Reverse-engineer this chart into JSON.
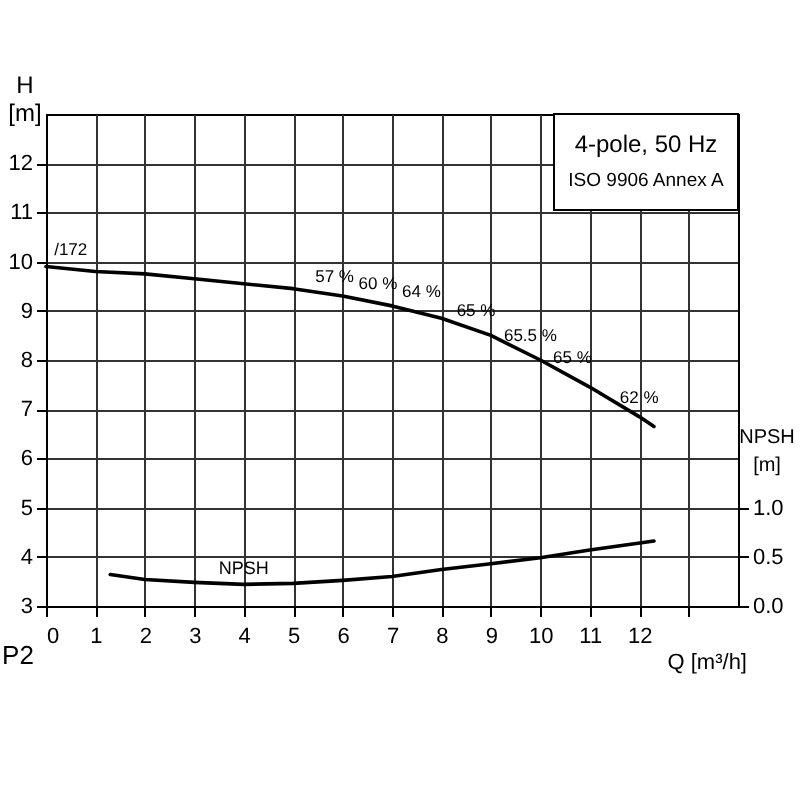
{
  "chart_data": {
    "type": "line",
    "title": "4-pole, 50 Hz",
    "subtitle": "ISO 9906 Annex A",
    "xlabel": "Q [m³/h]",
    "ylabel": "H [m]",
    "y2label": "NPSH [m]",
    "xlim": [
      0,
      14
    ],
    "xticks": [
      0,
      1,
      2,
      3,
      4,
      5,
      6,
      7,
      8,
      9,
      10,
      11,
      12,
      {
        "value": 13,
        "label": null
      }
    ],
    "ylim": [
      3,
      13
    ],
    "yticks": [
      3,
      4,
      5,
      6,
      7,
      8,
      9,
      10,
      11,
      12
    ],
    "y2lim": [
      0,
      5
    ],
    "y2ticks": [
      {
        "value": 0,
        "label": "0.0"
      },
      0.5,
      {
        "value": 1,
        "label": "1.0"
      }
    ],
    "grid": true,
    "series": [
      {
        "color": "#000000",
        "x": [
          0,
          1,
          2,
          3,
          4,
          5,
          6,
          7,
          8,
          9,
          10,
          11,
          12,
          12.3
        ],
        "values": [
          9.9,
          9.8,
          9.75,
          9.65,
          9.55,
          9.45,
          9.3,
          9.1,
          8.85,
          8.5,
          8.0,
          7.45,
          6.85,
          6.65
        ]
      },
      {
        "name": "NPSH",
        "axis": "y2",
        "color": "#000000",
        "x": [
          1.3,
          2,
          3,
          4,
          5,
          6,
          7,
          8,
          9,
          10,
          11,
          12.3
        ],
        "values": [
          0.32,
          0.27,
          0.24,
          0.22,
          0.23,
          0.26,
          0.3,
          0.37,
          0.43,
          0.49,
          0.57,
          0.66
        ]
      }
    ],
    "annotations": [
      {
        "text": "/172",
        "x": 0.5,
        "y": 9.85
      },
      {
        "text": "57 %",
        "x": 6.05,
        "y": 9.3
      },
      {
        "text": "60 %",
        "x": 6.75,
        "y": 9.15
      },
      {
        "text": "64 %",
        "x": 7.35,
        "y": 9.0
      },
      {
        "text": "65 %",
        "x": 8.7,
        "y": 8.6
      },
      {
        "text": "65.5 %",
        "x": 9.8,
        "y": 8.1
      },
      {
        "text": "65 %",
        "x": 10.65,
        "y": 7.65
      },
      {
        "text": "62 %",
        "x": 12.0,
        "y": 6.85
      },
      "P2"
    ]
  }
}
